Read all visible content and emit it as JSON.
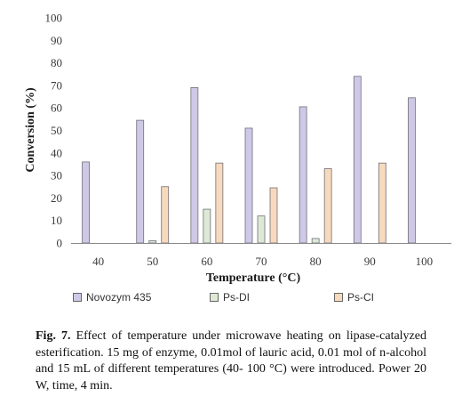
{
  "chart_data": {
    "type": "bar",
    "xlabel": "Temperature (°C)",
    "ylabel": "Conversion (%)",
    "ylim": [
      0,
      100
    ],
    "yticks": [
      "0",
      "10",
      "20",
      "30",
      "40",
      "50",
      "60",
      "70",
      "80",
      "90",
      "100"
    ],
    "categories": [
      "40",
      "50",
      "60",
      "70",
      "80",
      "90",
      "100"
    ],
    "series": [
      {
        "name": "Novozym 435",
        "color": "#cfc8e6",
        "values": [
          36,
          54.5,
          69,
          51,
          60.5,
          74,
          64.5
        ]
      },
      {
        "name": "Ps-DI",
        "color": "#dde9d5",
        "values": [
          0,
          1,
          15,
          12,
          2,
          0,
          0
        ]
      },
      {
        "name": "Ps-CI",
        "color": "#f7d9bd",
        "values": [
          0,
          25,
          35.5,
          24.5,
          33,
          35.5,
          0
        ]
      }
    ],
    "grid": false,
    "legend_position": "bottom"
  },
  "caption": {
    "label": "Fig. 7.",
    "text": "Effect of temperature under microwave heating on lipase-catalyzed esterification. 15 mg of enzyme, 0.01mol of lauric acid, 0.01 mol of n-alcohol and 15 mL of different temperatures (40- 100 °C) were introduced. Power 20 W, time, 4 min."
  }
}
